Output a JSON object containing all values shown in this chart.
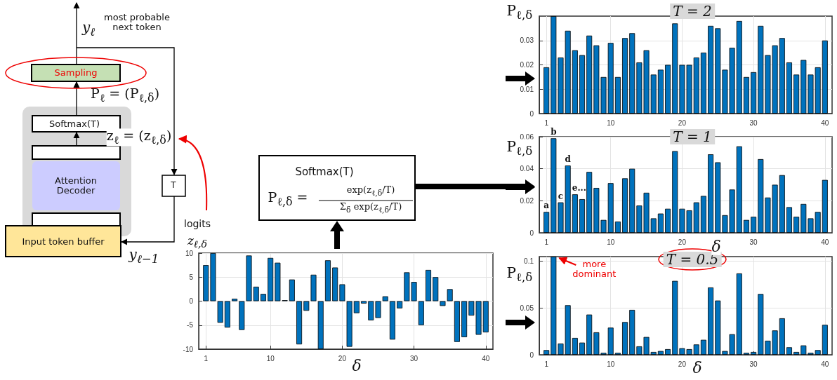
{
  "chart_data": [
    {
      "type": "other",
      "annotations": [
        "most probable next token",
        "y$_{ℓ}$",
        "Sampling",
        "P$_{ℓ}$ = (P$_{ℓ,δ}$)",
        "Softmax(T)",
        "z$_{ℓ}$ = (z$_{ℓ,δ}$)",
        "Attention Decoder",
        "T",
        "Input token buffer",
        "y$_{ℓ−1}$",
        "logits",
        "z$_{ℓ,δ}$",
        "Softmax(T)",
        "P$_{ℓ,δ}$ =",
        "exp(z$_{ℓ,δ}$/T)",
        "Σ$_{δ}$ exp(z$_{ℓ,δ}$/T)"
      ]
    },
    {
      "type": "bar",
      "title": "T = 2",
      "ylabel": "P$_{ℓ,δ}$",
      "color": "#0072bd",
      "grid": true,
      "xlim": [
        0,
        41
      ],
      "xticks": [
        1,
        10,
        20,
        30,
        40
      ],
      "ylim": [
        0,
        0.04
      ],
      "yticks": [
        0,
        0.01,
        0.02,
        0.03
      ],
      "x": [
        1,
        2,
        3,
        4,
        5,
        6,
        7,
        8,
        9,
        10,
        11,
        12,
        13,
        14,
        15,
        16,
        17,
        18,
        19,
        20,
        21,
        22,
        23,
        24,
        25,
        26,
        27,
        28,
        29,
        30,
        31,
        32,
        33,
        34,
        35,
        36,
        37,
        38,
        39,
        40
      ],
      "values": [
        0.019,
        0.04,
        0.023,
        0.034,
        0.026,
        0.024,
        0.032,
        0.028,
        0.015,
        0.029,
        0.015,
        0.031,
        0.033,
        0.021,
        0.026,
        0.016,
        0.018,
        0.02,
        0.037,
        0.02,
        0.02,
        0.023,
        0.025,
        0.036,
        0.035,
        0.018,
        0.027,
        0.038,
        0.015,
        0.017,
        0.036,
        0.024,
        0.028,
        0.031,
        0.021,
        0.016,
        0.022,
        0.016,
        0.019,
        0.03
      ]
    },
    {
      "type": "bar",
      "title": "T = 1",
      "ylabel": "P$_{ℓ,δ}$",
      "xlabel": "δ",
      "color": "#0072bd",
      "grid": true,
      "xlim": [
        0,
        41
      ],
      "xticks": [
        1,
        10,
        20,
        30,
        40
      ],
      "ylim": [
        0,
        0.06
      ],
      "yticks": [
        0,
        0.02,
        0.04,
        0.06
      ],
      "x": [
        1,
        2,
        3,
        4,
        5,
        6,
        7,
        8,
        9,
        10,
        11,
        12,
        13,
        14,
        15,
        16,
        17,
        18,
        19,
        20,
        21,
        22,
        23,
        24,
        25,
        26,
        27,
        28,
        29,
        30,
        31,
        32,
        33,
        34,
        35,
        36,
        37,
        38,
        39,
        40
      ],
      "values": [
        0.013,
        0.059,
        0.019,
        0.042,
        0.024,
        0.021,
        0.038,
        0.028,
        0.008,
        0.031,
        0.007,
        0.034,
        0.04,
        0.017,
        0.025,
        0.009,
        0.012,
        0.015,
        0.051,
        0.015,
        0.014,
        0.019,
        0.023,
        0.049,
        0.044,
        0.011,
        0.027,
        0.054,
        0.008,
        0.01,
        0.046,
        0.022,
        0.03,
        0.036,
        0.016,
        0.01,
        0.018,
        0.009,
        0.013,
        0.033
      ],
      "annotations": [
        {
          "text": "a",
          "x": 1,
          "y": 0.013
        },
        {
          "text": "b",
          "x": 2,
          "y": 0.059
        },
        {
          "text": "c",
          "x": 3,
          "y": 0.019
        },
        {
          "text": "d",
          "x": 4,
          "y": 0.042
        },
        {
          "text": "e...",
          "x": 5,
          "y": 0.024
        }
      ]
    },
    {
      "type": "bar",
      "xlabel": "δ",
      "color": "#0072bd",
      "grid": true,
      "xlim": [
        0,
        41
      ],
      "xticks": [
        1,
        10,
        20,
        30,
        40
      ],
      "ylim": [
        -10,
        10
      ],
      "yticks": [
        -10,
        -5,
        0,
        5,
        10
      ],
      "x": [
        1,
        2,
        3,
        4,
        5,
        6,
        7,
        8,
        9,
        10,
        11,
        12,
        13,
        14,
        15,
        16,
        17,
        18,
        19,
        20,
        21,
        22,
        23,
        24,
        25,
        26,
        27,
        28,
        29,
        30,
        31,
        32,
        33,
        34,
        35,
        36,
        37,
        38,
        39,
        40
      ],
      "values": [
        7.5,
        10,
        -4.5,
        -5.5,
        0.5,
        -6,
        9.5,
        3,
        1.5,
        9,
        8,
        0.2,
        4.5,
        -9,
        -2,
        5.5,
        -10,
        8.5,
        7,
        3.5,
        -9.5,
        -2.5,
        -0.5,
        -4,
        -3.5,
        1,
        -8,
        -1.5,
        6,
        4,
        -5,
        6.5,
        5,
        -1,
        2.5,
        -8.5,
        -7.5,
        -3,
        -7,
        -6.5
      ]
    },
    {
      "type": "bar",
      "title": "T = 0.5",
      "ylabel": "P$_{ℓ,δ}$",
      "xlabel": "δ",
      "color": "#0072bd",
      "grid": true,
      "xlim": [
        0,
        41
      ],
      "xticks": [
        1,
        10,
        20,
        30,
        40
      ],
      "ylim": [
        0,
        0.105
      ],
      "yticks": [
        0,
        0.05,
        0.1
      ],
      "x": [
        1,
        2,
        3,
        4,
        5,
        6,
        7,
        8,
        9,
        10,
        11,
        12,
        13,
        14,
        15,
        16,
        17,
        18,
        19,
        20,
        21,
        22,
        23,
        24,
        25,
        26,
        27,
        28,
        29,
        30,
        31,
        32,
        33,
        34,
        35,
        36,
        37,
        38,
        39,
        40
      ],
      "values": [
        0.005,
        0.105,
        0.012,
        0.053,
        0.018,
        0.013,
        0.043,
        0.024,
        0.002,
        0.029,
        0.002,
        0.035,
        0.048,
        0.009,
        0.019,
        0.003,
        0.004,
        0.006,
        0.079,
        0.007,
        0.006,
        0.011,
        0.016,
        0.072,
        0.058,
        0.004,
        0.022,
        0.087,
        0.002,
        0.003,
        0.065,
        0.015,
        0.026,
        0.039,
        0.008,
        0.003,
        0.01,
        0.002,
        0.005,
        0.032
      ],
      "annotations": [
        {
          "text": "more dominant",
          "x": 2,
          "y": 0.105
        }
      ]
    }
  ]
}
